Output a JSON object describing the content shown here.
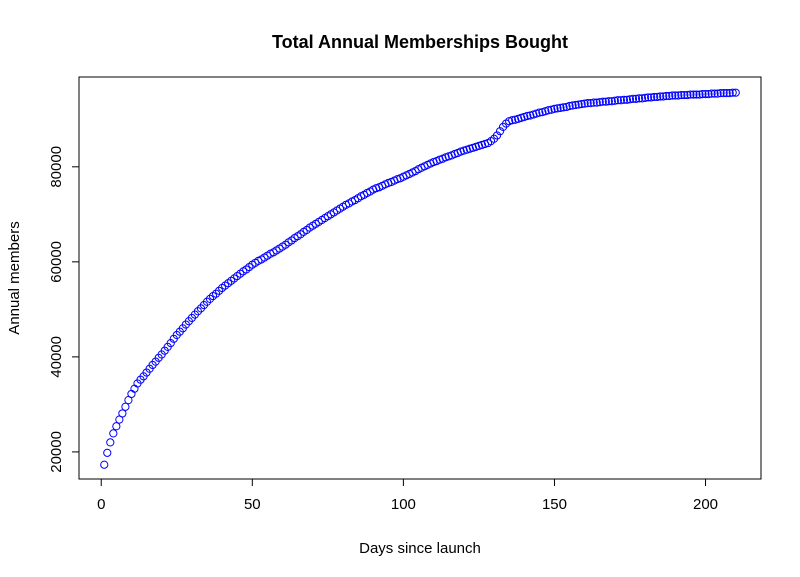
{
  "chart_data": {
    "type": "scatter",
    "title": "Total Annual Memberships Bought",
    "x_label": "Days since launch",
    "y_label": "Annual members",
    "color": "#0000ff",
    "x": [
      1,
      2,
      3,
      4,
      5,
      6,
      7,
      8,
      9,
      10,
      11,
      12,
      13,
      14,
      15,
      16,
      17,
      18,
      19,
      20,
      21,
      22,
      23,
      24,
      25,
      26,
      27,
      28,
      29,
      30,
      31,
      32,
      33,
      34,
      35,
      36,
      37,
      38,
      39,
      40,
      41,
      42,
      43,
      44,
      45,
      46,
      47,
      48,
      49,
      50,
      51,
      52,
      53,
      54,
      55,
      56,
      57,
      58,
      59,
      60,
      61,
      62,
      63,
      64,
      65,
      66,
      67,
      68,
      69,
      70,
      71,
      72,
      73,
      74,
      75,
      76,
      77,
      78,
      79,
      80,
      81,
      82,
      83,
      84,
      85,
      86,
      87,
      88,
      89,
      90,
      91,
      92,
      93,
      94,
      95,
      96,
      97,
      98,
      99,
      100,
      101,
      102,
      103,
      104,
      105,
      106,
      107,
      108,
      109,
      110,
      111,
      112,
      113,
      114,
      115,
      116,
      117,
      118,
      119,
      120,
      121,
      122,
      123,
      124,
      125,
      126,
      127,
      128,
      129,
      130,
      131,
      132,
      133,
      134,
      135,
      136,
      137,
      138,
      139,
      140,
      141,
      142,
      143,
      144,
      145,
      146,
      147,
      148,
      149,
      150,
      151,
      152,
      153,
      154,
      155,
      156,
      157,
      158,
      159,
      160,
      161,
      162,
      163,
      164,
      165,
      166,
      167,
      168,
      169,
      170,
      171,
      172,
      173,
      174,
      175,
      176,
      177,
      178,
      179,
      180,
      181,
      182,
      183,
      184,
      185,
      186,
      187,
      188,
      189,
      190,
      191,
      192,
      193,
      194,
      195,
      196,
      197,
      198,
      199,
      200,
      201,
      202,
      203,
      204,
      205,
      206,
      207,
      208,
      209,
      210
    ],
    "values": [
      17300,
      19800,
      22000,
      23900,
      25400,
      26800,
      28100,
      29500,
      30900,
      32200,
      33300,
      34400,
      35200,
      35900,
      36700,
      37500,
      38300,
      39000,
      39800,
      40500,
      41300,
      42100,
      42900,
      43800,
      44600,
      45300,
      46000,
      46800,
      47500,
      48200,
      48900,
      49600,
      50200,
      50900,
      51600,
      52200,
      52800,
      53300,
      53900,
      54500,
      55000,
      55500,
      56000,
      56500,
      57000,
      57500,
      58000,
      58400,
      58900,
      59400,
      59800,
      60200,
      60500,
      60900,
      61300,
      61700,
      62000,
      62400,
      62800,
      63200,
      63600,
      64100,
      64500,
      65000,
      65400,
      65800,
      66300,
      66700,
      67200,
      67600,
      68000,
      68400,
      68800,
      69200,
      69600,
      70000,
      70400,
      70800,
      71200,
      71600,
      72000,
      72300,
      72700,
      73000,
      73400,
      73800,
      74100,
      74500,
      74800,
      75200,
      75500,
      75700,
      76000,
      76300,
      76600,
      76800,
      77100,
      77400,
      77600,
      77900,
      78200,
      78500,
      78800,
      79100,
      79500,
      79800,
      80100,
      80400,
      80700,
      81000,
      81200,
      81500,
      81700,
      82000,
      82200,
      82400,
      82700,
      82900,
      83200,
      83400,
      83600,
      83800,
      84000,
      84200,
      84400,
      84600,
      84800,
      85000,
      85400,
      85900,
      86600,
      87500,
      88400,
      89100,
      89600,
      89800,
      89900,
      90100,
      90300,
      90500,
      90700,
      90800,
      91000,
      91200,
      91400,
      91500,
      91700,
      91900,
      92000,
      92200,
      92300,
      92400,
      92500,
      92600,
      92800,
      92900,
      93000,
      93100,
      93200,
      93300,
      93400,
      93400,
      93500,
      93500,
      93600,
      93700,
      93700,
      93800,
      93800,
      93900,
      94000,
      94000,
      94100,
      94100,
      94200,
      94300,
      94300,
      94400,
      94400,
      94500,
      94600,
      94600,
      94700,
      94700,
      94800,
      94800,
      94900,
      94900,
      95000,
      95000,
      95000,
      95100,
      95100,
      95100,
      95200,
      95200,
      95200,
      95200,
      95300,
      95300,
      95300,
      95400,
      95400,
      95400,
      95500,
      95500,
      95500,
      95500,
      95600,
      95600
    ],
    "xlim": [
      -7.36,
      218.36
    ],
    "xticks": [
      0,
      50,
      100,
      150,
      200
    ],
    "ylim": [
      14300,
      98900
    ],
    "yticks": [
      20000,
      40000,
      60000,
      80000
    ]
  }
}
